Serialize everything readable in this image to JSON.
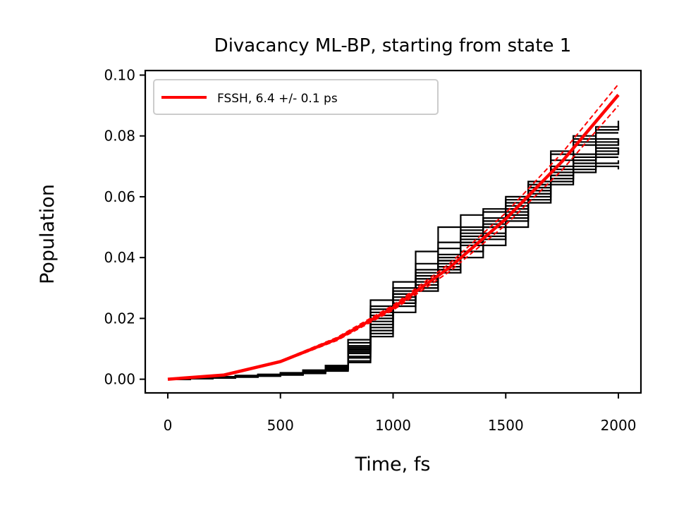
{
  "chart_data": {
    "type": "line",
    "title": "Divacancy ML-BP, starting from state 1",
    "xlabel": "Time, fs",
    "ylabel": "Population",
    "xlim": [
      -100,
      2100
    ],
    "ylim": [
      -0.0045,
      0.1015
    ],
    "xticks": [
      0,
      500,
      1000,
      1500,
      2000
    ],
    "xtick_labels": [
      "0",
      "500",
      "1000",
      "1500",
      "2000"
    ],
    "yticks": [
      0.0,
      0.02,
      0.04,
      0.06,
      0.08,
      0.1
    ],
    "ytick_labels": [
      "0.00",
      "0.02",
      "0.04",
      "0.06",
      "0.08",
      "0.10"
    ],
    "grid": false,
    "legend": {
      "position": "top-left",
      "entries": [
        {
          "label": "FSSH,  6.4 +/-  0.1 ps",
          "color": "#ff0000"
        }
      ]
    },
    "fit": {
      "name": "FSSH,  6.4 +/-  0.1 ps",
      "color": "#ff0000",
      "x": [
        0,
        250,
        500,
        750,
        1000,
        1250,
        1500,
        1750,
        2000
      ],
      "y": [
        0.0,
        0.0014,
        0.0058,
        0.0132,
        0.0235,
        0.0367,
        0.0527,
        0.0716,
        0.0935
      ],
      "upper": [
        0.0,
        0.00145,
        0.006,
        0.0137,
        0.0243,
        0.038,
        0.0547,
        0.0744,
        0.097
      ],
      "lower": [
        0.0,
        0.00135,
        0.0056,
        0.0127,
        0.0227,
        0.0354,
        0.0508,
        0.0688,
        0.09
      ]
    },
    "trajectories_x": [
      0,
      100,
      200,
      300,
      400,
      500,
      600,
      700,
      800,
      900,
      1000,
      1100,
      1200,
      1300,
      1400,
      1500,
      1600,
      1700,
      1800,
      1900,
      2000
    ],
    "trajectories": [
      [
        0,
        0.0005,
        0.0008,
        0.001,
        0.0015,
        0.002,
        0.003,
        0.004,
        0.009,
        0.018,
        0.024,
        0.03,
        0.036,
        0.045,
        0.048,
        0.055,
        0.062,
        0.066,
        0.068,
        0.07,
        0.069
      ],
      [
        0,
        0.0004,
        0.0008,
        0.0011,
        0.0014,
        0.0018,
        0.0025,
        0.0035,
        0.006,
        0.015,
        0.025,
        0.03,
        0.035,
        0.04,
        0.044,
        0.05,
        0.062,
        0.075,
        0.08,
        0.083,
        0.082
      ],
      [
        0,
        0.0003,
        0.0007,
        0.001,
        0.0013,
        0.0017,
        0.0022,
        0.0032,
        0.01,
        0.022,
        0.028,
        0.033,
        0.04,
        0.048,
        0.05,
        0.054,
        0.065,
        0.072,
        0.077,
        0.079,
        0.078
      ],
      [
        0,
        0.0002,
        0.0005,
        0.0008,
        0.001,
        0.0015,
        0.002,
        0.003,
        0.007,
        0.019,
        0.027,
        0.033,
        0.038,
        0.042,
        0.046,
        0.052,
        0.058,
        0.07,
        0.078,
        0.082,
        0.085
      ],
      [
        0,
        0.0003,
        0.0006,
        0.0009,
        0.0012,
        0.0016,
        0.0024,
        0.0036,
        0.012,
        0.026,
        0.032,
        0.042,
        0.05,
        0.054,
        0.056,
        0.06,
        0.064,
        0.067,
        0.071,
        0.073,
        0.073
      ],
      [
        0,
        0.0004,
        0.0007,
        0.0012,
        0.0016,
        0.0021,
        0.0028,
        0.0045,
        0.013,
        0.024,
        0.028,
        0.032,
        0.036,
        0.042,
        0.05,
        0.056,
        0.06,
        0.065,
        0.07,
        0.076,
        0.074
      ],
      [
        0,
        0.0002,
        0.0004,
        0.0007,
        0.0011,
        0.0014,
        0.0019,
        0.0027,
        0.0055,
        0.014,
        0.022,
        0.029,
        0.037,
        0.047,
        0.052,
        0.058,
        0.061,
        0.066,
        0.072,
        0.075,
        0.076
      ],
      [
        0,
        0.0003,
        0.0006,
        0.0009,
        0.0013,
        0.0018,
        0.0026,
        0.0038,
        0.011,
        0.02,
        0.03,
        0.038,
        0.045,
        0.049,
        0.053,
        0.057,
        0.063,
        0.069,
        0.074,
        0.078,
        0.077
      ],
      [
        0,
        0.0004,
        0.0007,
        0.001,
        0.0014,
        0.0019,
        0.0027,
        0.004,
        0.0085,
        0.017,
        0.026,
        0.035,
        0.041,
        0.045,
        0.05,
        0.054,
        0.059,
        0.064,
        0.069,
        0.071,
        0.072
      ],
      [
        0,
        0.0002,
        0.0005,
        0.0008,
        0.0012,
        0.0016,
        0.0023,
        0.0033,
        0.0075,
        0.016,
        0.025,
        0.031,
        0.039,
        0.044,
        0.047,
        0.053,
        0.063,
        0.074,
        0.079,
        0.081,
        0.081
      ],
      [
        0,
        0.0003,
        0.0006,
        0.001,
        0.0013,
        0.0017,
        0.0024,
        0.0037,
        0.0095,
        0.021,
        0.029,
        0.036,
        0.043,
        0.05,
        0.055,
        0.059,
        0.064,
        0.068,
        0.072,
        0.074,
        0.075
      ],
      [
        0,
        0.0004,
        0.0008,
        0.0011,
        0.0015,
        0.002,
        0.0029,
        0.0042,
        0.0105,
        0.023,
        0.03,
        0.034,
        0.039,
        0.046,
        0.051,
        0.056,
        0.061,
        0.067,
        0.073,
        0.077,
        0.079
      ]
    ]
  }
}
